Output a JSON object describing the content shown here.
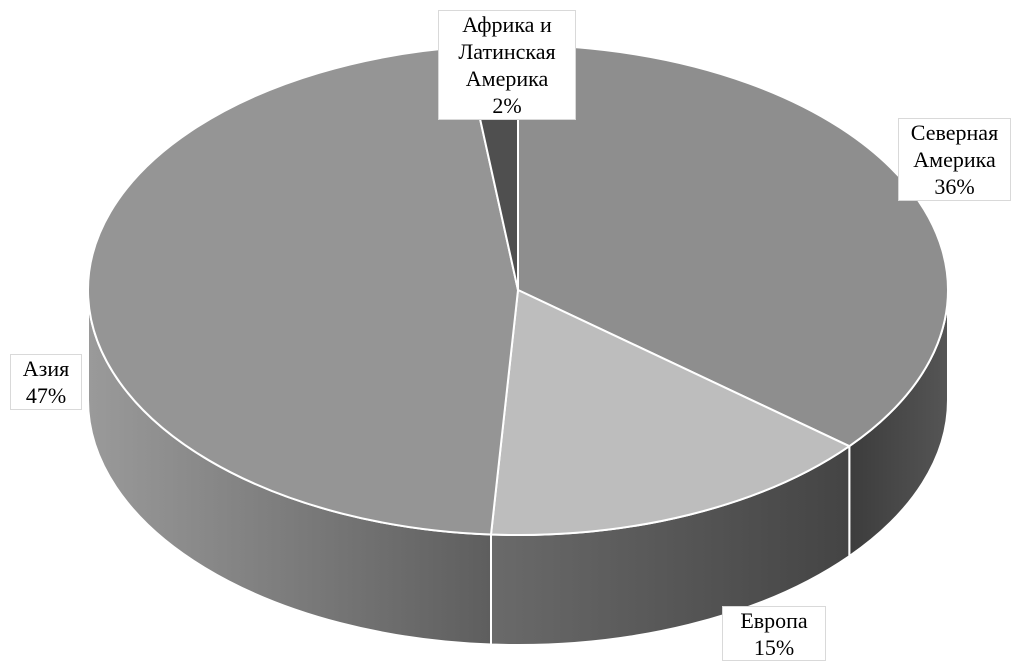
{
  "chart_data": {
    "type": "pie",
    "style": "3d",
    "title": "",
    "slices": [
      {
        "label": "Северная Америка",
        "value": 36,
        "value_label": "36%",
        "color": "#8e8e8e"
      },
      {
        "label": "Европа",
        "value": 15,
        "value_label": "15%",
        "color": "#bdbdbd"
      },
      {
        "label": "Азия",
        "value": 47,
        "value_label": "47%",
        "color": "#959595"
      },
      {
        "label": "Африка и Латинская Америка",
        "value": 2,
        "value_label": "2%",
        "color": "#4f4f4f"
      }
    ],
    "legend": "none",
    "data_labels": "category-and-percent"
  },
  "labels": {
    "na": {
      "line1": "Северная",
      "line2": "Америка",
      "pct": "36%"
    },
    "eu": {
      "line1": "Европа",
      "pct": "15%"
    },
    "asia": {
      "line1": "Азия",
      "pct": "47%"
    },
    "afr": {
      "line1": "Африка и",
      "line2": "Латинская",
      "line3": "Америка",
      "pct": "2%"
    }
  }
}
